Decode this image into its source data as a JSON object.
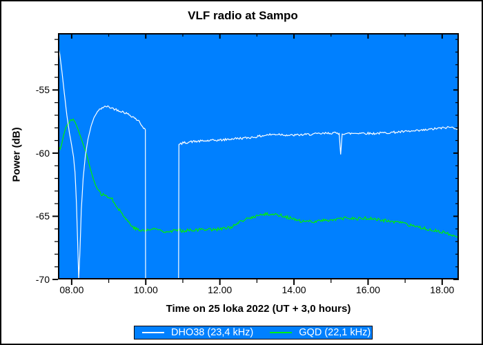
{
  "figure": {
    "bg": "#FFFFFF",
    "frame_color": "#000000"
  },
  "title": "VLF radio at Sampo",
  "chart_data": {
    "type": "line",
    "title": "VLF radio at Sampo",
    "xlabel": "Time on 25 loka 2022 (UT + 3,0 hours)",
    "ylabel": "Power (dB)",
    "xlim": [
      7.63,
      18.45
    ],
    "ylim": [
      -70,
      -50.5
    ],
    "grid": false,
    "plot_bg": "#0080FF",
    "axis_color": "#000000",
    "legend_position": "bottom",
    "x_major_ticks": [
      8,
      10,
      12,
      14,
      16,
      18
    ],
    "x_major_labels": [
      "08.00",
      "10.00",
      "12.00",
      "14.00",
      "16.00",
      "18.00"
    ],
    "x_minor_ticks": [
      9,
      11,
      13,
      15,
      17
    ],
    "y_major_ticks": [
      -55,
      -60,
      -65,
      -70
    ],
    "y_major_labels": [
      "-55",
      "-60",
      "-65",
      "-70"
    ],
    "y_minor_ticks": [
      -51,
      -52,
      -53,
      -54,
      -56,
      -57,
      -58,
      -59,
      -61,
      -62,
      -63,
      -64,
      -66,
      -67,
      -68,
      -69
    ],
    "series": [
      {
        "name": "GQD (22,1 kHz)",
        "color": "#00F000",
        "noise": 0.13,
        "seed": 77,
        "points": [
          [
            7.63,
            -58.9
          ],
          [
            7.66,
            -59.5
          ],
          [
            7.69,
            -59.7
          ],
          [
            7.73,
            -59.3
          ],
          [
            7.78,
            -58.6
          ],
          [
            7.84,
            -58.0
          ],
          [
            7.91,
            -57.6
          ],
          [
            7.98,
            -57.35
          ],
          [
            8.04,
            -57.3
          ],
          [
            8.1,
            -57.6
          ],
          [
            8.17,
            -58.1
          ],
          [
            8.24,
            -58.7
          ],
          [
            8.31,
            -59.3
          ],
          [
            8.36,
            -59.7
          ],
          [
            8.43,
            -60.4
          ],
          [
            8.5,
            -61.2
          ],
          [
            8.57,
            -61.9
          ],
          [
            8.64,
            -62.5
          ],
          [
            8.72,
            -63.0
          ],
          [
            8.8,
            -63.25
          ],
          [
            8.9,
            -63.35
          ],
          [
            9.02,
            -63.45
          ],
          [
            9.12,
            -63.75
          ],
          [
            9.22,
            -64.2
          ],
          [
            9.34,
            -64.7
          ],
          [
            9.46,
            -65.2
          ],
          [
            9.58,
            -65.6
          ],
          [
            9.7,
            -65.95
          ],
          [
            9.82,
            -66.1
          ],
          [
            9.95,
            -66.15
          ],
          [
            10.1,
            -66.05
          ],
          [
            10.3,
            -66.0
          ],
          [
            10.45,
            -66.15
          ],
          [
            10.6,
            -66.2
          ],
          [
            10.8,
            -66.1
          ],
          [
            11.0,
            -66.15
          ],
          [
            11.2,
            -66.05
          ],
          [
            11.4,
            -66.1
          ],
          [
            11.6,
            -66.0
          ],
          [
            11.8,
            -66.05
          ],
          [
            12.0,
            -66.0
          ],
          [
            12.2,
            -65.95
          ],
          [
            12.35,
            -65.8
          ],
          [
            12.5,
            -65.55
          ],
          [
            12.7,
            -65.25
          ],
          [
            12.9,
            -65.05
          ],
          [
            13.1,
            -64.9
          ],
          [
            13.3,
            -64.82
          ],
          [
            13.5,
            -64.85
          ],
          [
            13.7,
            -64.95
          ],
          [
            13.9,
            -65.15
          ],
          [
            14.1,
            -65.35
          ],
          [
            14.3,
            -65.45
          ],
          [
            14.5,
            -65.4
          ],
          [
            14.7,
            -65.35
          ],
          [
            14.9,
            -65.3
          ],
          [
            15.1,
            -65.25
          ],
          [
            15.3,
            -65.2
          ],
          [
            15.5,
            -65.15
          ],
          [
            15.7,
            -65.2
          ],
          [
            15.9,
            -65.15
          ],
          [
            16.1,
            -65.2
          ],
          [
            16.35,
            -65.3
          ],
          [
            16.6,
            -65.4
          ],
          [
            16.85,
            -65.5
          ],
          [
            17.1,
            -65.7
          ],
          [
            17.35,
            -65.9
          ],
          [
            17.6,
            -66.0
          ],
          [
            17.8,
            -66.1
          ],
          [
            18.0,
            -66.25
          ],
          [
            18.15,
            -66.4
          ],
          [
            18.3,
            -66.55
          ],
          [
            18.45,
            -66.65
          ]
        ]
      },
      {
        "name": "DHO38 (23,4 kHz)",
        "color": "#FFFFFF",
        "noise": 0.09,
        "seed": 42,
        "points": [
          [
            7.63,
            -51.4
          ],
          [
            7.68,
            -52.2
          ],
          [
            7.74,
            -53.6
          ],
          [
            7.8,
            -55.2
          ],
          [
            7.87,
            -57.0
          ],
          [
            7.94,
            -58.4
          ],
          [
            8.0,
            -59.4
          ],
          [
            8.05,
            -60.3
          ],
          [
            8.09,
            -61.5
          ],
          [
            8.13,
            -64.0
          ],
          [
            8.16,
            -67.0
          ],
          [
            8.19,
            -70
          ],
          [
            8.22,
            -68.0
          ],
          [
            8.26,
            -64.5
          ],
          [
            8.31,
            -62.0
          ],
          [
            8.37,
            -60.2
          ],
          [
            8.44,
            -58.9
          ],
          [
            8.52,
            -57.9
          ],
          [
            8.6,
            -57.2
          ],
          [
            8.7,
            -56.7
          ],
          [
            8.82,
            -56.4
          ],
          [
            8.95,
            -56.3
          ],
          [
            9.1,
            -56.45
          ],
          [
            9.25,
            -56.6
          ],
          [
            9.4,
            -56.75
          ],
          [
            9.55,
            -56.95
          ],
          [
            9.7,
            -57.2
          ],
          [
            9.82,
            -57.5
          ],
          [
            9.92,
            -57.9
          ],
          [
            9.99,
            -58.15
          ],
          [
            9.995,
            -70
          ],
          [
            10.885,
            -70
          ],
          [
            10.895,
            -59.35
          ],
          [
            11.0,
            -59.2
          ],
          [
            11.2,
            -59.1
          ],
          [
            11.5,
            -59.05
          ],
          [
            11.8,
            -59.0
          ],
          [
            12.1,
            -58.95
          ],
          [
            12.4,
            -58.85
          ],
          [
            12.7,
            -58.8
          ],
          [
            13.0,
            -58.7
          ],
          [
            13.3,
            -58.55
          ],
          [
            13.6,
            -58.5
          ],
          [
            13.9,
            -58.6
          ],
          [
            14.2,
            -58.55
          ],
          [
            14.5,
            -58.5
          ],
          [
            14.8,
            -58.45
          ],
          [
            15.05,
            -58.4
          ],
          [
            15.22,
            -58.45
          ],
          [
            15.26,
            -60.1
          ],
          [
            15.3,
            -58.45
          ],
          [
            15.5,
            -58.45
          ],
          [
            15.8,
            -58.4
          ],
          [
            16.1,
            -58.45
          ],
          [
            16.4,
            -58.4
          ],
          [
            16.7,
            -58.35
          ],
          [
            17.0,
            -58.3
          ],
          [
            17.3,
            -58.25
          ],
          [
            17.6,
            -58.15
          ],
          [
            17.85,
            -58.05
          ],
          [
            18.05,
            -58.0
          ],
          [
            18.2,
            -57.95
          ],
          [
            18.35,
            -58.0
          ],
          [
            18.45,
            -58.1
          ]
        ]
      }
    ]
  },
  "legend": {
    "bg": "#0080FF",
    "border": "#000000",
    "text_color": "#FFFFFF",
    "entries": [
      {
        "label": "DHO38 (23,4 kHz)",
        "color": "#FFFFFF"
      },
      {
        "label": "GQD (22,1 kHz)",
        "color": "#00F000"
      }
    ]
  }
}
